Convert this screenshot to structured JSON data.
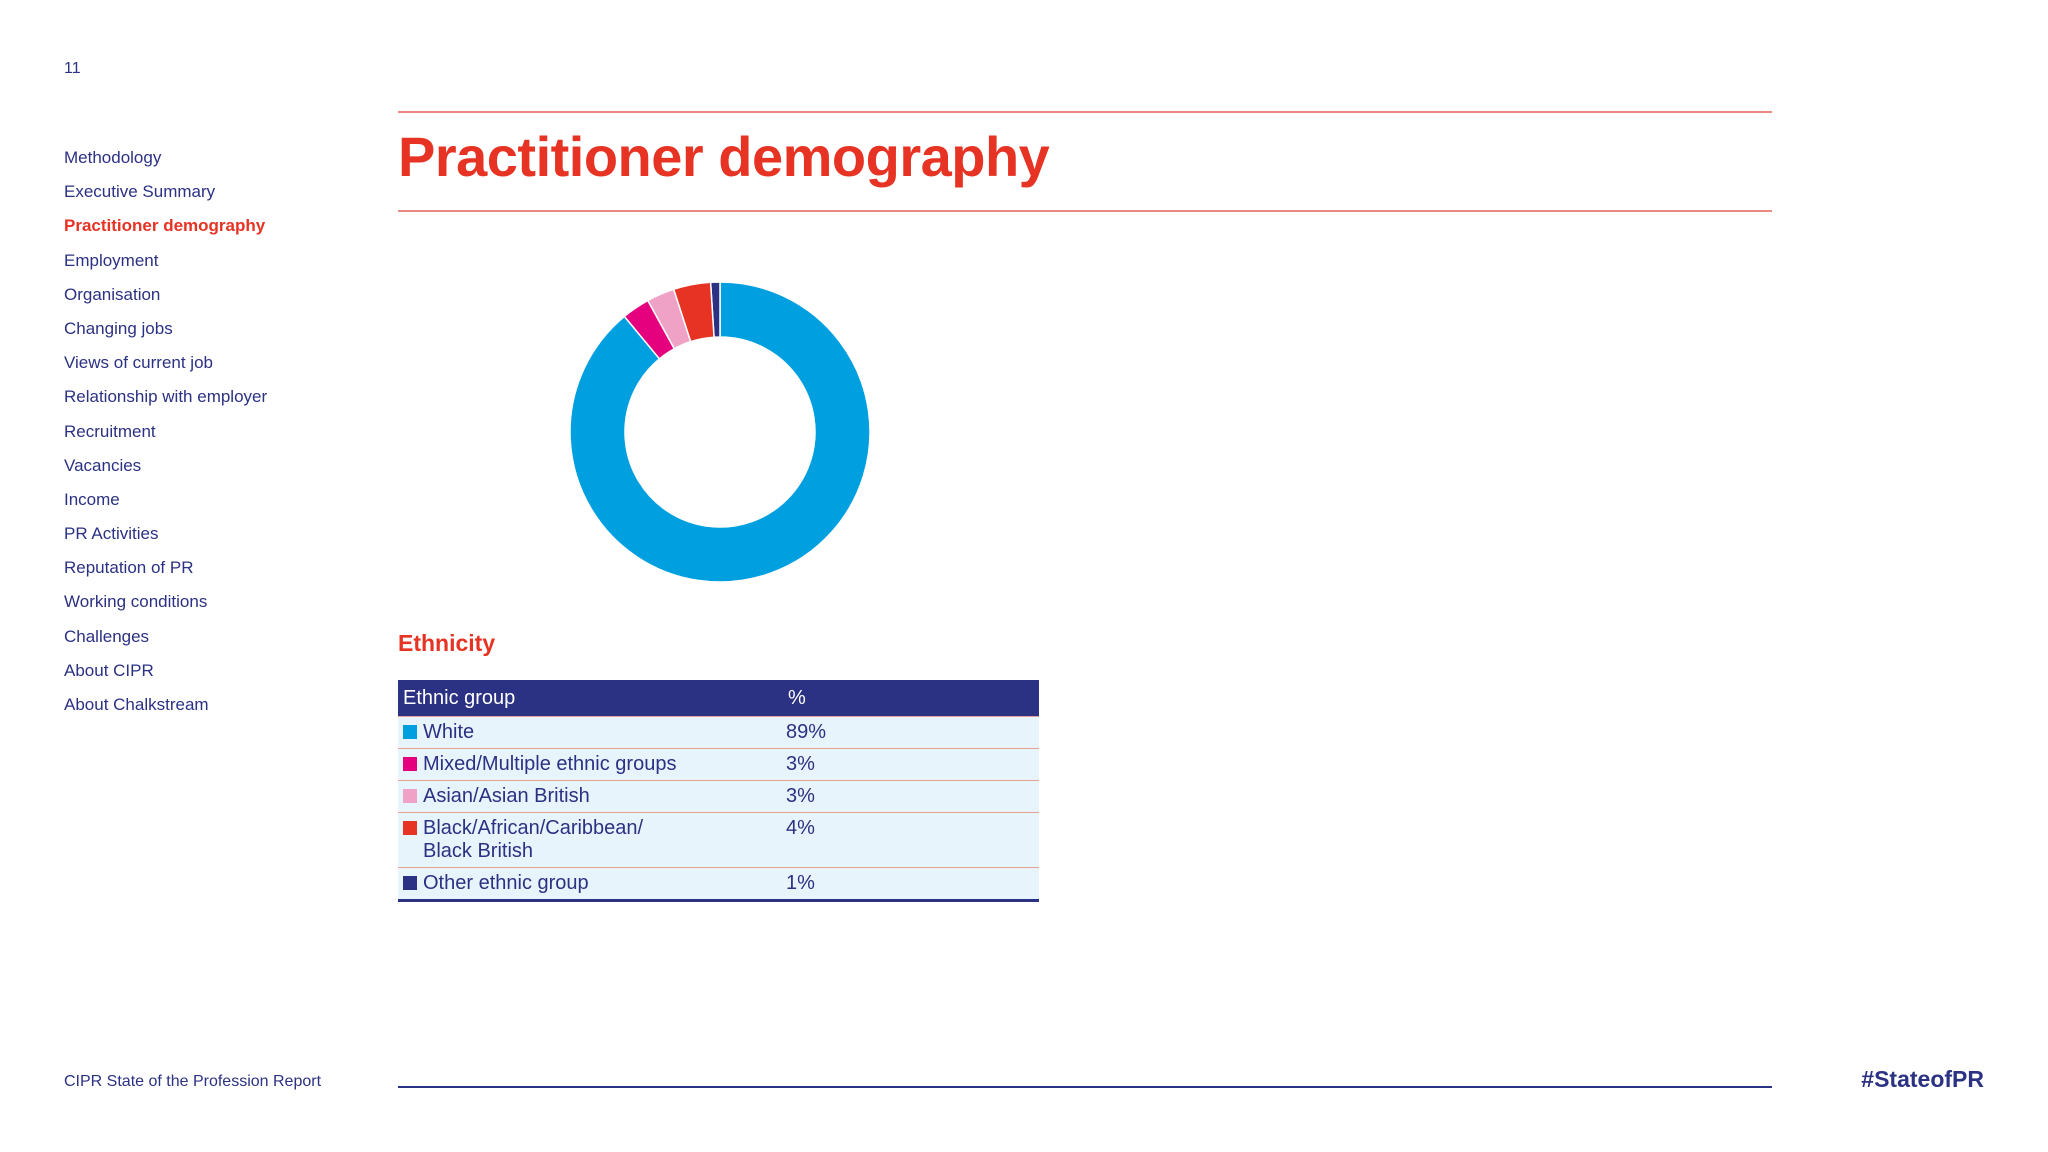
{
  "page": {
    "number": "11"
  },
  "sidebar": {
    "items": [
      {
        "label": "Methodology",
        "active": false
      },
      {
        "label": "Executive Summary",
        "active": false
      },
      {
        "label": "Practitioner demography",
        "active": true
      },
      {
        "label": "Employment",
        "active": false
      },
      {
        "label": "Organisation",
        "active": false
      },
      {
        "label": "Changing jobs",
        "active": false
      },
      {
        "label": "Views of current job",
        "active": false
      },
      {
        "label": "Relationship with employer",
        "active": false
      },
      {
        "label": "Recruitment",
        "active": false
      },
      {
        "label": "Vacancies",
        "active": false
      },
      {
        "label": "Income",
        "active": false
      },
      {
        "label": "PR Activities",
        "active": false
      },
      {
        "label": "Reputation of PR",
        "active": false
      },
      {
        "label": "Working conditions",
        "active": false
      },
      {
        "label": "Challenges",
        "active": false
      },
      {
        "label": "About CIPR",
        "active": false
      },
      {
        "label": "About Chalkstream",
        "active": false
      }
    ]
  },
  "header": {
    "title": "Practitioner demography"
  },
  "chart_data": {
    "type": "pie",
    "variant": "donut",
    "title": "Ethnicity",
    "legend_placement": "table below chart",
    "table_headers": [
      "Ethnic group",
      "%"
    ],
    "slices": [
      {
        "label": "White",
        "value": 89,
        "display": "89%",
        "color": "#009fe0"
      },
      {
        "label": "Mixed/Multiple ethnic groups",
        "value": 3,
        "display": "3%",
        "color": "#e5007e"
      },
      {
        "label": "Asian/Asian British",
        "value": 3,
        "display": "3%",
        "color": "#f0a2c6"
      },
      {
        "label": "Black/African/Caribbean/ Black British",
        "value": 4,
        "display": "4%",
        "color": "#e63323"
      },
      {
        "label": "Other ethnic group",
        "value": 1,
        "display": "1%",
        "color": "#2b3183"
      }
    ]
  },
  "footer": {
    "report_name": "CIPR State of the Profession Report",
    "hashtag": "#StateofPR"
  },
  "colors": {
    "accent": "#e63323",
    "navy": "#2b3183",
    "table_row_bg": "#e8f4fb"
  }
}
